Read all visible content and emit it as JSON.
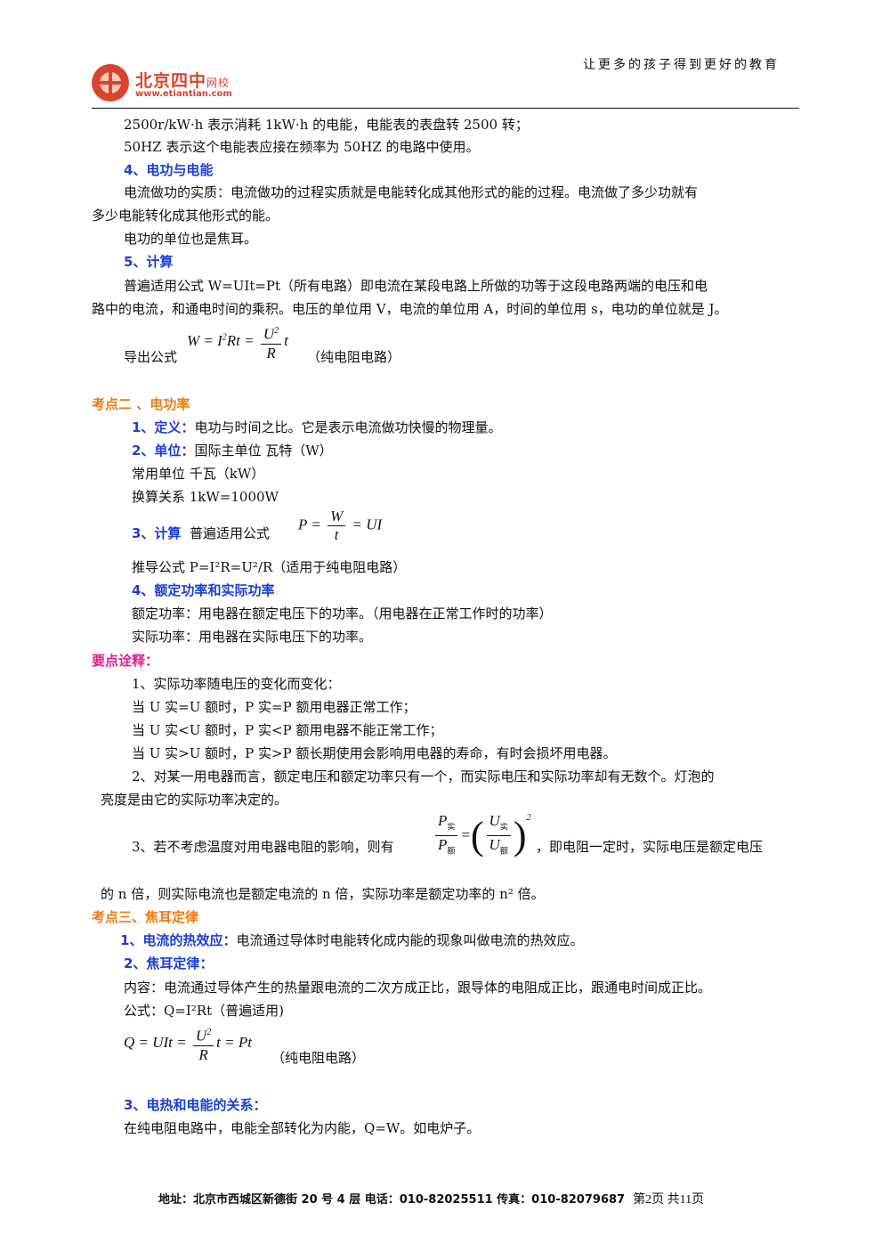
{
  "header": {
    "slogan": "让更多的孩子得到更好的教育",
    "logo_name": "北京四中",
    "logo_sub": "网校",
    "logo_url": "www.etiantian.com"
  },
  "lines": {
    "l1": "2500r/kW·h 表示消耗 1kW·h 的电能，电能表的表盘转 2500 转；",
    "l2": "50HZ 表示这个电能表应接在频率为 50HZ 的电路中使用。",
    "h4": "4、电功与电能",
    "l3": "电流做功的实质：电流做功的过程实质就是电能转化成其他形式的能的过程。电流做了多少功就有",
    "l4": "多少电能转化成其他形式的能。",
    "l5": "电功的单位也是焦耳。",
    "h5": "5、计算",
    "l6": "普遍适用公式 W=UIt=Pt（所有电路）即电流在某段电路上所做的功等于这段电路两端的电压和电",
    "l7": "路中的电流，和通电时间的乘积。电压的单位用 V，电流的单位用 A，时间的单位用 s，电功的单位就是 J。",
    "l8_prefix": "导出公式",
    "l8_suffix": "（纯电阻电路）",
    "sec2": "考点二 、电功率",
    "def_label": "1、定义：",
    "def_text": "电功与时间之比。它是表示电流做功快慢的物理量。",
    "unit_label": "2、单位：",
    "unit_text": "国际主单位  瓦特（W）",
    "unit2": "常用单位  千瓦（kW）",
    "unit3": "换算关系  1kW=1000W",
    "calc_label": "3、计算",
    "calc_text": "普遍适用公式",
    "derive_text": "推导公式  P=I²R=U²/R（适用于纯电阻电路）",
    "rated_label": "4、额定功率和实际功率",
    "rated1": "额定功率：用电器在额定电压下的功率。（用电器在正常工作时的功率）",
    "rated2": "实际功率：用电器在实际电压下的功率。",
    "notes": "要点诠释：",
    "n1": "1、实际功率随电压的变化而变化：",
    "n2": "当 U 实=U 额时，P 实=P 额用电器正常工作；",
    "n3": "当 U 实<U 额时，P 实<P 额用电器不能正常工作；",
    "n4": "当 U 实>U 额时，P 实>P 额长期使用会影响用电器的寿命，有时会损坏用电器。",
    "n5": "2、对某一用电器而言，额定电压和额定功率只有一个，而实际电压和实际功率却有无数个。灯泡的",
    "n6": "亮度是由它的实际功率决定的。",
    "n7_prefix": "3、若不考虑温度对用电器电阻的影响，则有",
    "n7_suffix": "，即电阻一定时，实际电压是额定电压",
    "n8": "的 n 倍，则实际电流也是额定电流的 n 倍，实际功率是额定功率的 n² 倍。",
    "sec3": "考点三、焦耳定律",
    "heat_label": "1、电流的热效应：",
    "heat_text": "电流通过导体时电能转化成内能的现象叫做电流的热效应。",
    "joule_label": "2、焦耳定律：",
    "content": "内容：电流通过导体产生的热量跟电流的二次方成正比，跟导体的电阻成正比，跟通电时间成正比。",
    "formula": "公式：Q=I²Rt（普遍适用)",
    "q_suffix": "（纯电阻电路）",
    "rel_label": "3、电热和电能的关系：",
    "rel_text": "在纯电阻电路中，电能全部转化为内能，Q=W。如电炉子。"
  },
  "footer": {
    "address": "地址：北京市西城区新德街 20 号 4 层  电话：010-82025511  传真：010-82079687",
    "page": "第2页  共11页"
  }
}
